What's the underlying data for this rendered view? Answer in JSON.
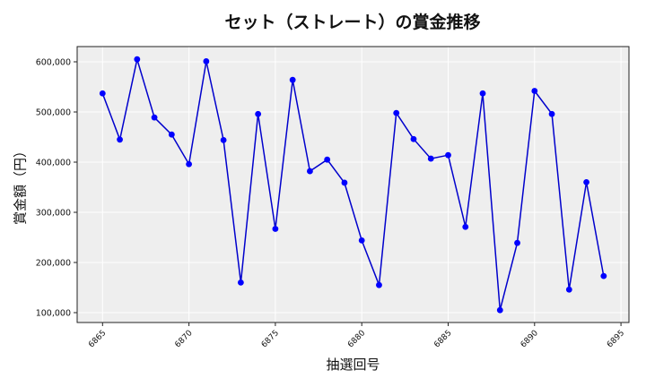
{
  "chart_data": {
    "type": "line",
    "title": "セット（ストレート）の賞金推移",
    "xlabel": "抽選回号",
    "ylabel": "賞金額（円）",
    "x": [
      6865,
      6866,
      6867,
      6868,
      6869,
      6870,
      6871,
      6872,
      6873,
      6874,
      6875,
      6876,
      6877,
      6878,
      6879,
      6880,
      6881,
      6882,
      6883,
      6884,
      6885,
      6886,
      6887,
      6888,
      6889,
      6890,
      6891,
      6892,
      6893,
      6894
    ],
    "series": [
      {
        "name": "賞金額",
        "color": "#0000cc",
        "marker_color": "#0000ff",
        "values": [
          537000,
          445000,
          605000,
          489000,
          455000,
          396000,
          601000,
          444000,
          160000,
          496000,
          267000,
          564000,
          382000,
          405000,
          359000,
          244000,
          155000,
          498000,
          446000,
          407000,
          414000,
          271000,
          537000,
          105000,
          239000,
          542000,
          496000,
          146000,
          360000,
          173000
        ]
      }
    ],
    "xticks": [
      6865,
      6870,
      6875,
      6880,
      6885,
      6890,
      6895
    ],
    "yticks": [
      100000,
      200000,
      300000,
      400000,
      500000,
      600000
    ],
    "ytick_labels": [
      "100,000",
      "200,000",
      "300,000",
      "400,000",
      "500,000",
      "600,000"
    ],
    "xlim": [
      6863.5,
      6895.5
    ],
    "ylim": [
      80000,
      630000
    ],
    "grid": true,
    "legend": null,
    "background": "#eeeeee"
  }
}
